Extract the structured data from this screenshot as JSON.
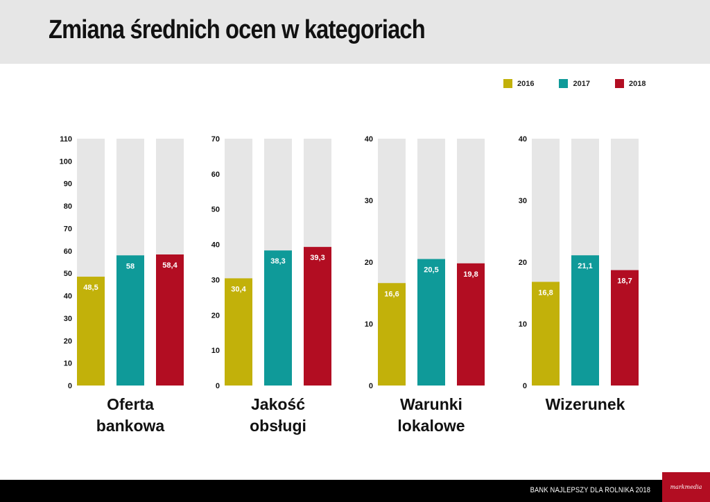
{
  "header": {
    "title": "Zmiana średnich ocen w kategoriach"
  },
  "legend": [
    {
      "label": "2016",
      "color": "#c2b10a"
    },
    {
      "label": "2017",
      "color": "#0f9a99"
    },
    {
      "label": "2018",
      "color": "#b20d22"
    }
  ],
  "chart_data": [
    {
      "type": "bar",
      "title": "Oferta bankowa",
      "title_lines": [
        "Oferta",
        "bankowa"
      ],
      "categories": [
        "2016",
        "2017",
        "2018"
      ],
      "values": [
        48.5,
        58,
        58.4
      ],
      "labels": [
        "48,5",
        "58",
        "58,4"
      ],
      "ylim": [
        0,
        110
      ],
      "yticks": [
        0,
        10,
        20,
        30,
        40,
        50,
        60,
        70,
        80,
        90,
        100,
        110
      ]
    },
    {
      "type": "bar",
      "title": "Jakość obsługi",
      "title_lines": [
        "Jakość",
        "obsługi"
      ],
      "categories": [
        "2016",
        "2017",
        "2018"
      ],
      "values": [
        30.4,
        38.3,
        39.3
      ],
      "labels": [
        "30,4",
        "38,3",
        "39,3"
      ],
      "ylim": [
        0,
        70
      ],
      "yticks": [
        0,
        10,
        20,
        30,
        40,
        50,
        60,
        70
      ]
    },
    {
      "type": "bar",
      "title": "Warunki lokalowe",
      "title_lines": [
        "Warunki",
        "lokalowe"
      ],
      "categories": [
        "2016",
        "2017",
        "2018"
      ],
      "values": [
        16.6,
        20.5,
        19.8
      ],
      "labels": [
        "16,6",
        "20,5",
        "19,8"
      ],
      "ylim": [
        0,
        40
      ],
      "yticks": [
        0,
        10,
        20,
        30,
        40
      ]
    },
    {
      "type": "bar",
      "title": "Wizerunek",
      "title_lines": [
        "Wizerunek"
      ],
      "categories": [
        "2016",
        "2017",
        "2018"
      ],
      "values": [
        16.8,
        21.1,
        18.7
      ],
      "labels": [
        "16,8",
        "21,1",
        "18,7"
      ],
      "ylim": [
        0,
        40
      ],
      "yticks": [
        0,
        10,
        20,
        30,
        40
      ]
    }
  ],
  "footer": {
    "text": "BANK NAJLEPSZY DLA ROLNIKA 2018",
    "logo_text": "markmedia"
  },
  "colors": {
    "track": "#e6e6e6",
    "axis_text": "#111111",
    "value_text": "#ffffff"
  }
}
